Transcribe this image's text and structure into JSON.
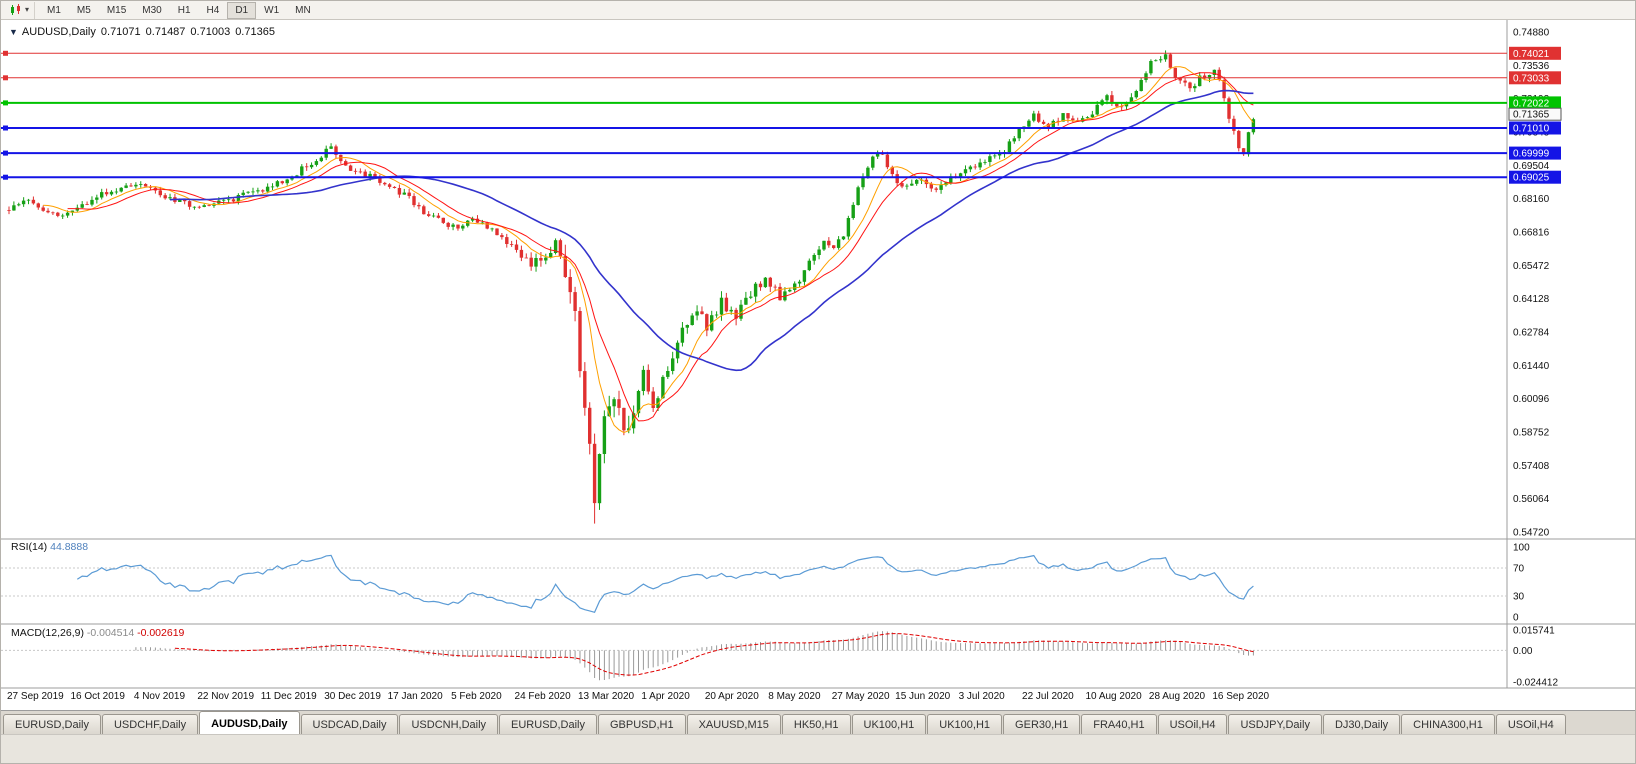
{
  "toolbar": {
    "timeframes": [
      "M1",
      "M5",
      "M15",
      "M30",
      "H1",
      "H4",
      "D1",
      "W1",
      "MN"
    ],
    "active_timeframe": "D1"
  },
  "chart_header": {
    "marker": "▼",
    "symbol": "AUDUSD,Daily",
    "open": "0.71071",
    "high": "0.71487",
    "low": "0.71003",
    "close": "0.71365"
  },
  "price_axis": {
    "min": 0.5472,
    "max": 0.7488,
    "labels": [
      "0.74880",
      "0.73536",
      "0.72192",
      "0.70848",
      "0.69504",
      "0.68160",
      "0.66816",
      "0.65472",
      "0.64128",
      "0.62784",
      "0.61440",
      "0.60096",
      "0.58752",
      "0.57408",
      "0.56064",
      "0.54720"
    ]
  },
  "horizontal_lines": [
    {
      "price": 0.74021,
      "label": "0.74021",
      "color": "#e03232",
      "width": 1
    },
    {
      "price": 0.73033,
      "label": "0.73033",
      "color": "#e03232",
      "width": 1
    },
    {
      "price": 0.72022,
      "label": "0.72022",
      "color": "#00c300",
      "width": 2
    },
    {
      "price": 0.7101,
      "label": "0.71010",
      "color": "#1414e6",
      "width": 2
    },
    {
      "price": 0.69999,
      "label": "0.69999",
      "color": "#1414e6",
      "width": 2
    },
    {
      "price": 0.69025,
      "label": "0.69025",
      "color": "#1414e6",
      "width": 2
    }
  ],
  "current_price_tag": {
    "value": 0.71365,
    "label": "0.71365"
  },
  "date_axis": {
    "labels": [
      "27 Sep 2019",
      "16 Oct 2019",
      "4 Nov 2019",
      "22 Nov 2019",
      "11 Dec 2019",
      "30 Dec 2019",
      "17 Jan 2020",
      "5 Feb 2020",
      "24 Feb 2020",
      "13 Mar 2020",
      "1 Apr 2020",
      "20 Apr 2020",
      "8 May 2020",
      "27 May 2020",
      "15 Jun 2020",
      "3 Jul 2020",
      "22 Jul 2020",
      "10 Aug 2020",
      "28 Aug 2020",
      "16 Sep 2020"
    ]
  },
  "rsi_panel": {
    "name": "RSI(14)",
    "value": "44.8888",
    "levels": [
      "100",
      "70",
      "30",
      "0"
    ],
    "level_values": [
      100,
      70,
      30,
      0
    ],
    "line_color": "#5b9bd5"
  },
  "macd_panel": {
    "name": "MACD(12,26,9)",
    "value_main": "-0.004514",
    "value_signal": "-0.002619",
    "scale_top": "0.015741",
    "scale_zero": "0.00",
    "scale_bottom": "-0.024412",
    "scale_top_value": 0.015741,
    "scale_bottom_value": -0.024412
  },
  "tabs": {
    "active_index": 2,
    "items": [
      "EURUSD,Daily",
      "USDCHF,Daily",
      "AUDUSD,Daily",
      "USDCAD,Daily",
      "USDCNH,Daily",
      "EURUSD,Daily",
      "GBPUSD,H1",
      "XAUUSD,M15",
      "HK50,H1",
      "UK100,H1",
      "UK100,H1",
      "GER30,H1",
      "FRA40,H1",
      "USOil,H4",
      "USDJPY,Daily",
      "DJ30,Daily",
      "CHINA300,H1",
      "USOil,H4"
    ]
  },
  "chart_data": {
    "type": "candlestick",
    "title": "AUDUSD,Daily",
    "bars": 256,
    "last_close": 0.71365,
    "y_range": [
      0.5472,
      0.7488
    ],
    "up_color": "#16a016",
    "down_color": "#e03030",
    "price_path": [
      [
        0,
        0.677
      ],
      [
        4,
        0.6815
      ],
      [
        8,
        0.676
      ],
      [
        13,
        0.6755
      ],
      [
        18,
        0.6825
      ],
      [
        23,
        0.6855
      ],
      [
        26,
        0.688
      ],
      [
        30,
        0.6845
      ],
      [
        35,
        0.68
      ],
      [
        39,
        0.6785
      ],
      [
        45,
        0.681
      ],
      [
        52,
        0.6855
      ],
      [
        57,
        0.6895
      ],
      [
        62,
        0.696
      ],
      [
        66,
        0.702
      ],
      [
        70,
        0.6935
      ],
      [
        75,
        0.69
      ],
      [
        78,
        0.687
      ],
      [
        82,
        0.682
      ],
      [
        86,
        0.6745
      ],
      [
        91,
        0.67
      ],
      [
        95,
        0.673
      ],
      [
        99,
        0.6695
      ],
      [
        104,
        0.6605
      ],
      [
        107,
        0.6545
      ],
      [
        110,
        0.659
      ],
      [
        112,
        0.6625
      ],
      [
        114,
        0.652
      ],
      [
        116,
        0.6335
      ],
      [
        118,
        0.598
      ],
      [
        119,
        0.582
      ],
      [
        120,
        0.559
      ],
      [
        121,
        0.578
      ],
      [
        122,
        0.59
      ],
      [
        124,
        0.601
      ],
      [
        126,
        0.587
      ],
      [
        128,
        0.596
      ],
      [
        130,
        0.613
      ],
      [
        132,
        0.598
      ],
      [
        134,
        0.608
      ],
      [
        136,
        0.617
      ],
      [
        138,
        0.628
      ],
      [
        141,
        0.6365
      ],
      [
        143,
        0.63
      ],
      [
        146,
        0.6395
      ],
      [
        149,
        0.634
      ],
      [
        152,
        0.644
      ],
      [
        155,
        0.6475
      ],
      [
        158,
        0.642
      ],
      [
        161,
        0.646
      ],
      [
        164,
        0.656
      ],
      [
        167,
        0.6655
      ],
      [
        169,
        0.6625
      ],
      [
        171,
        0.667
      ],
      [
        174,
        0.685
      ],
      [
        177,
        0.6985
      ],
      [
        179,
        0.7
      ],
      [
        181,
        0.6905
      ],
      [
        183,
        0.6855
      ],
      [
        186,
        0.6905
      ],
      [
        189,
        0.6855
      ],
      [
        192,
        0.6885
      ],
      [
        195,
        0.6915
      ],
      [
        198,
        0.6945
      ],
      [
        201,
        0.6975
      ],
      [
        204,
        0.7005
      ],
      [
        207,
        0.709
      ],
      [
        210,
        0.7145
      ],
      [
        213,
        0.7095
      ],
      [
        216,
        0.7155
      ],
      [
        219,
        0.7135
      ],
      [
        222,
        0.7165
      ],
      [
        225,
        0.723
      ],
      [
        228,
        0.7185
      ],
      [
        231,
        0.7255
      ],
      [
        234,
        0.7365
      ],
      [
        237,
        0.74
      ],
      [
        239,
        0.731
      ],
      [
        242,
        0.726
      ],
      [
        244,
        0.73
      ],
      [
        247,
        0.734
      ],
      [
        248,
        0.7295
      ],
      [
        250,
        0.715
      ],
      [
        252,
        0.703
      ],
      [
        253,
        0.7005
      ],
      [
        254,
        0.708
      ],
      [
        255,
        0.71365
      ]
    ],
    "volatility": [
      {
        "from": 0,
        "to": 103,
        "v": 0.0026
      },
      {
        "from": 104,
        "to": 113,
        "v": 0.005
      },
      {
        "from": 114,
        "to": 128,
        "v": 0.0085
      },
      {
        "from": 129,
        "to": 158,
        "v": 0.0045
      },
      {
        "from": 159,
        "to": 255,
        "v": 0.003
      }
    ],
    "spikes": [
      {
        "index": 120,
        "low": 0.5506
      },
      {
        "index": 237,
        "high": 0.7414
      }
    ],
    "moving_averages": [
      {
        "period": 8,
        "color": "#ffa000",
        "width": 1
      },
      {
        "period": 13,
        "color": "#ff1414",
        "width": 1
      },
      {
        "period": 34,
        "color": "#3333cc",
        "width": 1.6
      }
    ],
    "indicators": {
      "rsi": {
        "period": 14,
        "last": 44.8888
      },
      "macd": {
        "fast": 12,
        "slow": 26,
        "signal": 9,
        "last_main": -0.004514,
        "last_signal": -0.002619
      }
    }
  }
}
